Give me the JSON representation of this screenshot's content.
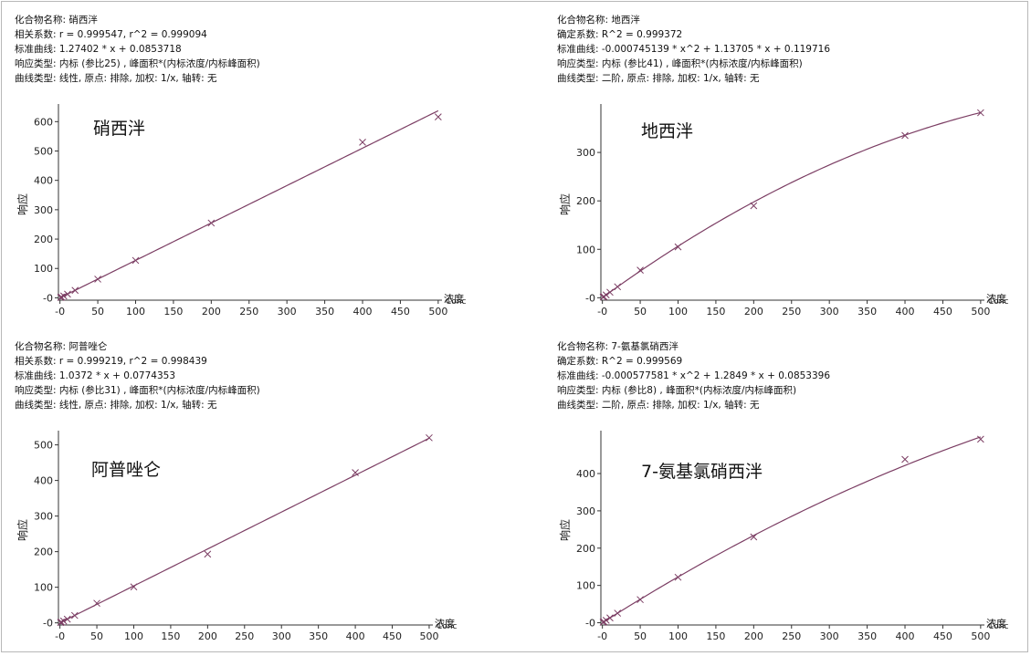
{
  "chart_data": [
    {
      "type": "scatter",
      "title": "硝西泮",
      "info": [
        "化合物名称: 硝西泮",
        "相关系数: r = 0.999547, r^2 = 0.999094",
        "标准曲线: 1.27402 * x + 0.0853718",
        "响应类型: 内标 (参比25) , 峰面积*(内标浓度/内标峰面积)",
        "曲线类型: 线性, 原点: 排除, 加权: 1/x, 轴转: 无"
      ],
      "ylabel": "响应",
      "xlabel": "浓度",
      "xlabel2": "Conc",
      "xlim": [
        -2,
        505
      ],
      "ylim": [
        -8,
        660
      ],
      "xticks": [
        0,
        50,
        100,
        150,
        200,
        250,
        300,
        350,
        400,
        450,
        500
      ],
      "xtick_labels": [
        "-0",
        "50",
        "100",
        "150",
        "200",
        "250",
        "300",
        "350",
        "400",
        "450",
        "500"
      ],
      "yticks": [
        0,
        100,
        200,
        300,
        400,
        500,
        600
      ],
      "ytick_labels": [
        "-0",
        "100",
        "200",
        "300",
        "400",
        "500",
        "600"
      ],
      "x": [
        1,
        2,
        5,
        10,
        20,
        50,
        100,
        200,
        400,
        500
      ],
      "y": [
        1.3,
        2.6,
        6.4,
        12.7,
        25.5,
        63.7,
        127.4,
        254.8,
        530,
        616
      ],
      "fit": {
        "kind": "poly",
        "c2": 0,
        "c1": 1.27402,
        "c0": 0.0853718,
        "range": [
          0,
          500
        ]
      }
    },
    {
      "type": "scatter",
      "title": "地西泮",
      "info": [
        "化合物名称: 地西泮",
        "确定系数: R^2 = 0.999372",
        "标准曲线: -0.000745139 * x^2 + 1.13705 * x + 0.119716",
        "响应类型: 内标 (参比41) , 峰面积*(内标浓度/内标峰面积)",
        "曲线类型: 二阶, 原点: 排除, 加权: 1/x, 轴转: 无"
      ],
      "ylabel": "响应",
      "xlabel": "浓度",
      "xlabel2": "Conc",
      "xlim": [
        -2,
        505
      ],
      "ylim": [
        -5,
        400
      ],
      "xticks": [
        0,
        50,
        100,
        150,
        200,
        250,
        300,
        350,
        400,
        450,
        500
      ],
      "xtick_labels": [
        "-0",
        "50",
        "100",
        "150",
        "200",
        "250",
        "300",
        "350",
        "400",
        "450",
        "500"
      ],
      "yticks": [
        0,
        100,
        200,
        300
      ],
      "ytick_labels": [
        "-0",
        "100",
        "200",
        "300"
      ],
      "x": [
        1,
        2,
        5,
        10,
        20,
        50,
        100,
        200,
        400,
        500
      ],
      "y": [
        1.3,
        2.4,
        5.8,
        11.4,
        22.7,
        57.0,
        105,
        190,
        335,
        382
      ],
      "fit": {
        "kind": "poly",
        "c2": -0.000745139,
        "c1": 1.13705,
        "c0": 0.119716,
        "range": [
          0,
          500
        ]
      }
    },
    {
      "type": "scatter",
      "title": "阿普唑仑",
      "info": [
        "化合物名称: 阿普唑仑",
        "相关系数: r = 0.999219, r^2 = 0.998439",
        "标准曲线: 1.0372 * x + 0.0774353",
        "响应类型: 内标 (参比31) , 峰面积*(内标浓度/内标峰面积)",
        "曲线类型: 线性, 原点: 排除, 加权: 1/x, 轴转: 无"
      ],
      "ylabel": "响应",
      "xlabel": "浓度",
      "xlabel2": "Conc",
      "xlim": [
        -2,
        505
      ],
      "ylim": [
        -6,
        540
      ],
      "xticks": [
        0,
        50,
        100,
        150,
        200,
        250,
        300,
        350,
        400,
        450,
        500
      ],
      "xtick_labels": [
        "-0",
        "50",
        "100",
        "150",
        "200",
        "250",
        "300",
        "350",
        "400",
        "450",
        "500"
      ],
      "yticks": [
        0,
        100,
        200,
        300,
        400,
        500
      ],
      "ytick_labels": [
        "-0",
        "100",
        "200",
        "300",
        "400",
        "500"
      ],
      "x": [
        1,
        2,
        5,
        10,
        20,
        50,
        100,
        200,
        400,
        500
      ],
      "y": [
        1.1,
        2.1,
        5.3,
        10.4,
        20.8,
        55,
        101,
        193,
        422,
        520
      ],
      "fit": {
        "kind": "poly",
        "c2": 0,
        "c1": 1.0372,
        "c0": 0.0774353,
        "range": [
          0,
          500
        ]
      }
    },
    {
      "type": "scatter",
      "title": "7-氨基氯硝西泮",
      "info": [
        "化合物名称: 7-氨基氯硝西泮",
        "确定系数: R^2 = 0.999569",
        "标准曲线: -0.000577581 * x^2 + 1.2849 * x + 0.0853396",
        "响应类型: 内标 (参比8) , 峰面积*(内标浓度/内标峰面积)",
        "曲线类型: 二阶, 原点: 排除, 加权: 1/x, 轴转: 无"
      ],
      "ylabel": "响应",
      "xlabel": "浓度",
      "xlabel2": "Conc",
      "xlim": [
        -2,
        505
      ],
      "ylim": [
        -6,
        515
      ],
      "xticks": [
        0,
        50,
        100,
        150,
        200,
        250,
        300,
        350,
        400,
        450,
        500
      ],
      "xtick_labels": [
        "-0",
        "50",
        "100",
        "150",
        "200",
        "250",
        "300",
        "350",
        "400",
        "450",
        "500"
      ],
      "yticks": [
        0,
        100,
        200,
        300,
        400
      ],
      "ytick_labels": [
        "-0",
        "100",
        "200",
        "300",
        "400"
      ],
      "x": [
        1,
        2,
        5,
        10,
        20,
        50,
        100,
        200,
        400,
        500
      ],
      "y": [
        1.4,
        2.7,
        6.5,
        12.9,
        25.6,
        62,
        122,
        230,
        438,
        492
      ],
      "fit": {
        "kind": "poly",
        "c2": -0.000577581,
        "c1": 1.2849,
        "c0": 0.0853396,
        "range": [
          0,
          500
        ]
      }
    }
  ],
  "colors": {
    "curve": "#7b3d63",
    "marker": "#7b3d63",
    "axis": "#333333"
  }
}
